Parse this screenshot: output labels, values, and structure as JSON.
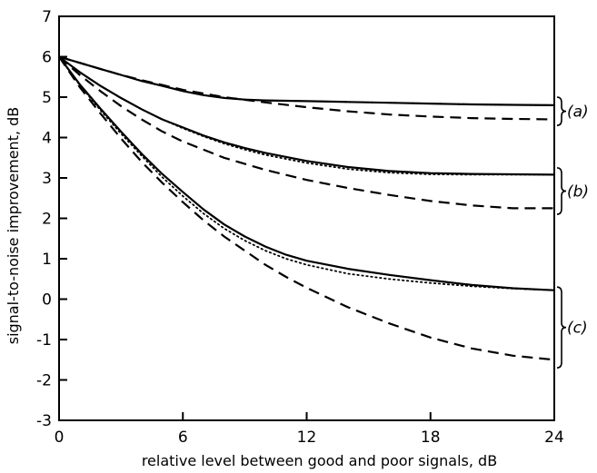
{
  "chart_data": {
    "type": "line",
    "title": "",
    "xlabel": "relative level between good and poor signals, dB",
    "ylabel": "signal-to-noise improvement, dB",
    "xlim": [
      0,
      24
    ],
    "ylim": [
      -3,
      7
    ],
    "xticks": [
      0,
      6,
      12,
      18,
      24
    ],
    "yticks": [
      -3,
      -2,
      -1,
      0,
      1,
      2,
      3,
      4,
      5,
      6,
      7
    ],
    "xtick_labels": [
      "0",
      "6",
      "12",
      "18",
      "24"
    ],
    "ytick_labels": [
      "-3",
      "-2",
      "-1",
      "0",
      "1",
      "2",
      "3",
      "4",
      "5",
      "6",
      "7"
    ],
    "grid": false,
    "series": [
      {
        "group": "a",
        "style": "solid",
        "x": [
          0,
          1,
          2,
          3,
          4,
          5,
          6,
          7,
          8,
          9,
          10,
          12,
          14,
          16,
          18,
          20,
          22,
          24
        ],
        "y": [
          6.0,
          5.85,
          5.7,
          5.55,
          5.4,
          5.28,
          5.15,
          5.05,
          4.98,
          4.94,
          4.92,
          4.9,
          4.88,
          4.86,
          4.84,
          4.82,
          4.81,
          4.8
        ]
      },
      {
        "group": "a",
        "style": "dotted",
        "x": [
          0,
          1,
          2,
          3,
          4,
          5,
          6,
          7,
          8,
          9,
          10,
          12,
          14,
          16,
          18,
          20,
          22,
          24
        ],
        "y": [
          6.0,
          5.85,
          5.7,
          5.55,
          5.4,
          5.28,
          5.15,
          5.05,
          4.98,
          4.94,
          4.92,
          4.9,
          4.88,
          4.86,
          4.84,
          4.82,
          4.81,
          4.8
        ]
      },
      {
        "group": "a",
        "style": "dashed",
        "x": [
          0,
          1,
          2,
          3,
          4,
          5,
          6,
          8,
          10,
          12,
          14,
          16,
          18,
          20,
          22,
          24
        ],
        "y": [
          6.0,
          5.85,
          5.7,
          5.55,
          5.42,
          5.3,
          5.18,
          5.0,
          4.87,
          4.75,
          4.65,
          4.57,
          4.52,
          4.48,
          4.46,
          4.45
        ]
      },
      {
        "group": "b",
        "style": "solid",
        "x": [
          0,
          1,
          2,
          3,
          4,
          5,
          6,
          7,
          8,
          9,
          10,
          12,
          14,
          16,
          18,
          20,
          22,
          24
        ],
        "y": [
          6.0,
          5.62,
          5.28,
          4.98,
          4.7,
          4.45,
          4.25,
          4.05,
          3.88,
          3.74,
          3.62,
          3.42,
          3.27,
          3.17,
          3.12,
          3.1,
          3.09,
          3.08
        ]
      },
      {
        "group": "b",
        "style": "dotted",
        "x": [
          0,
          1,
          2,
          3,
          4,
          5,
          6,
          7,
          8,
          9,
          10,
          12,
          14,
          16,
          18,
          20,
          22,
          24
        ],
        "y": [
          6.0,
          5.62,
          5.28,
          4.98,
          4.7,
          4.45,
          4.23,
          4.03,
          3.85,
          3.7,
          3.57,
          3.37,
          3.22,
          3.13,
          3.09,
          3.08,
          3.08,
          3.08
        ]
      },
      {
        "group": "b",
        "style": "dashed",
        "x": [
          0,
          1,
          2,
          3,
          4,
          5,
          6,
          8,
          10,
          12,
          14,
          16,
          18,
          20,
          22,
          24
        ],
        "y": [
          6.0,
          5.55,
          5.15,
          4.78,
          4.45,
          4.15,
          3.9,
          3.5,
          3.2,
          2.95,
          2.75,
          2.58,
          2.43,
          2.32,
          2.25,
          2.25
        ]
      },
      {
        "group": "c",
        "style": "solid",
        "x": [
          0,
          1,
          2,
          3,
          4,
          5,
          6,
          7,
          8,
          9,
          10,
          11,
          12,
          14,
          16,
          18,
          20,
          22,
          24
        ],
        "y": [
          6.0,
          5.32,
          4.72,
          4.15,
          3.6,
          3.1,
          2.65,
          2.22,
          1.85,
          1.55,
          1.3,
          1.1,
          0.95,
          0.75,
          0.6,
          0.47,
          0.35,
          0.27,
          0.22
        ]
      },
      {
        "group": "c",
        "style": "dotted",
        "x": [
          0,
          1,
          2,
          3,
          4,
          5,
          6,
          7,
          8,
          9,
          10,
          11,
          12,
          14,
          16,
          18,
          20,
          22,
          24
        ],
        "y": [
          6.0,
          5.3,
          4.68,
          4.1,
          3.55,
          3.02,
          2.55,
          2.12,
          1.75,
          1.45,
          1.2,
          1.0,
          0.85,
          0.63,
          0.5,
          0.4,
          0.32,
          0.26,
          0.22
        ]
      },
      {
        "group": "c",
        "style": "dashed",
        "x": [
          0,
          1,
          2,
          3,
          4,
          5,
          6,
          7,
          8,
          9,
          10,
          11,
          12,
          14,
          16,
          18,
          20,
          22,
          24
        ],
        "y": [
          6.0,
          5.25,
          4.6,
          3.98,
          3.4,
          2.88,
          2.4,
          1.95,
          1.55,
          1.2,
          0.85,
          0.55,
          0.28,
          -0.2,
          -0.6,
          -0.95,
          -1.22,
          -1.4,
          -1.5
        ]
      }
    ],
    "annotations": [
      {
        "label": "(a)",
        "y_range": [
          4.3,
          5.0
        ]
      },
      {
        "label": "(b)",
        "y_range": [
          2.1,
          3.25
        ]
      },
      {
        "label": "(c)",
        "y_range": [
          -1.7,
          0.3
        ]
      }
    ]
  }
}
